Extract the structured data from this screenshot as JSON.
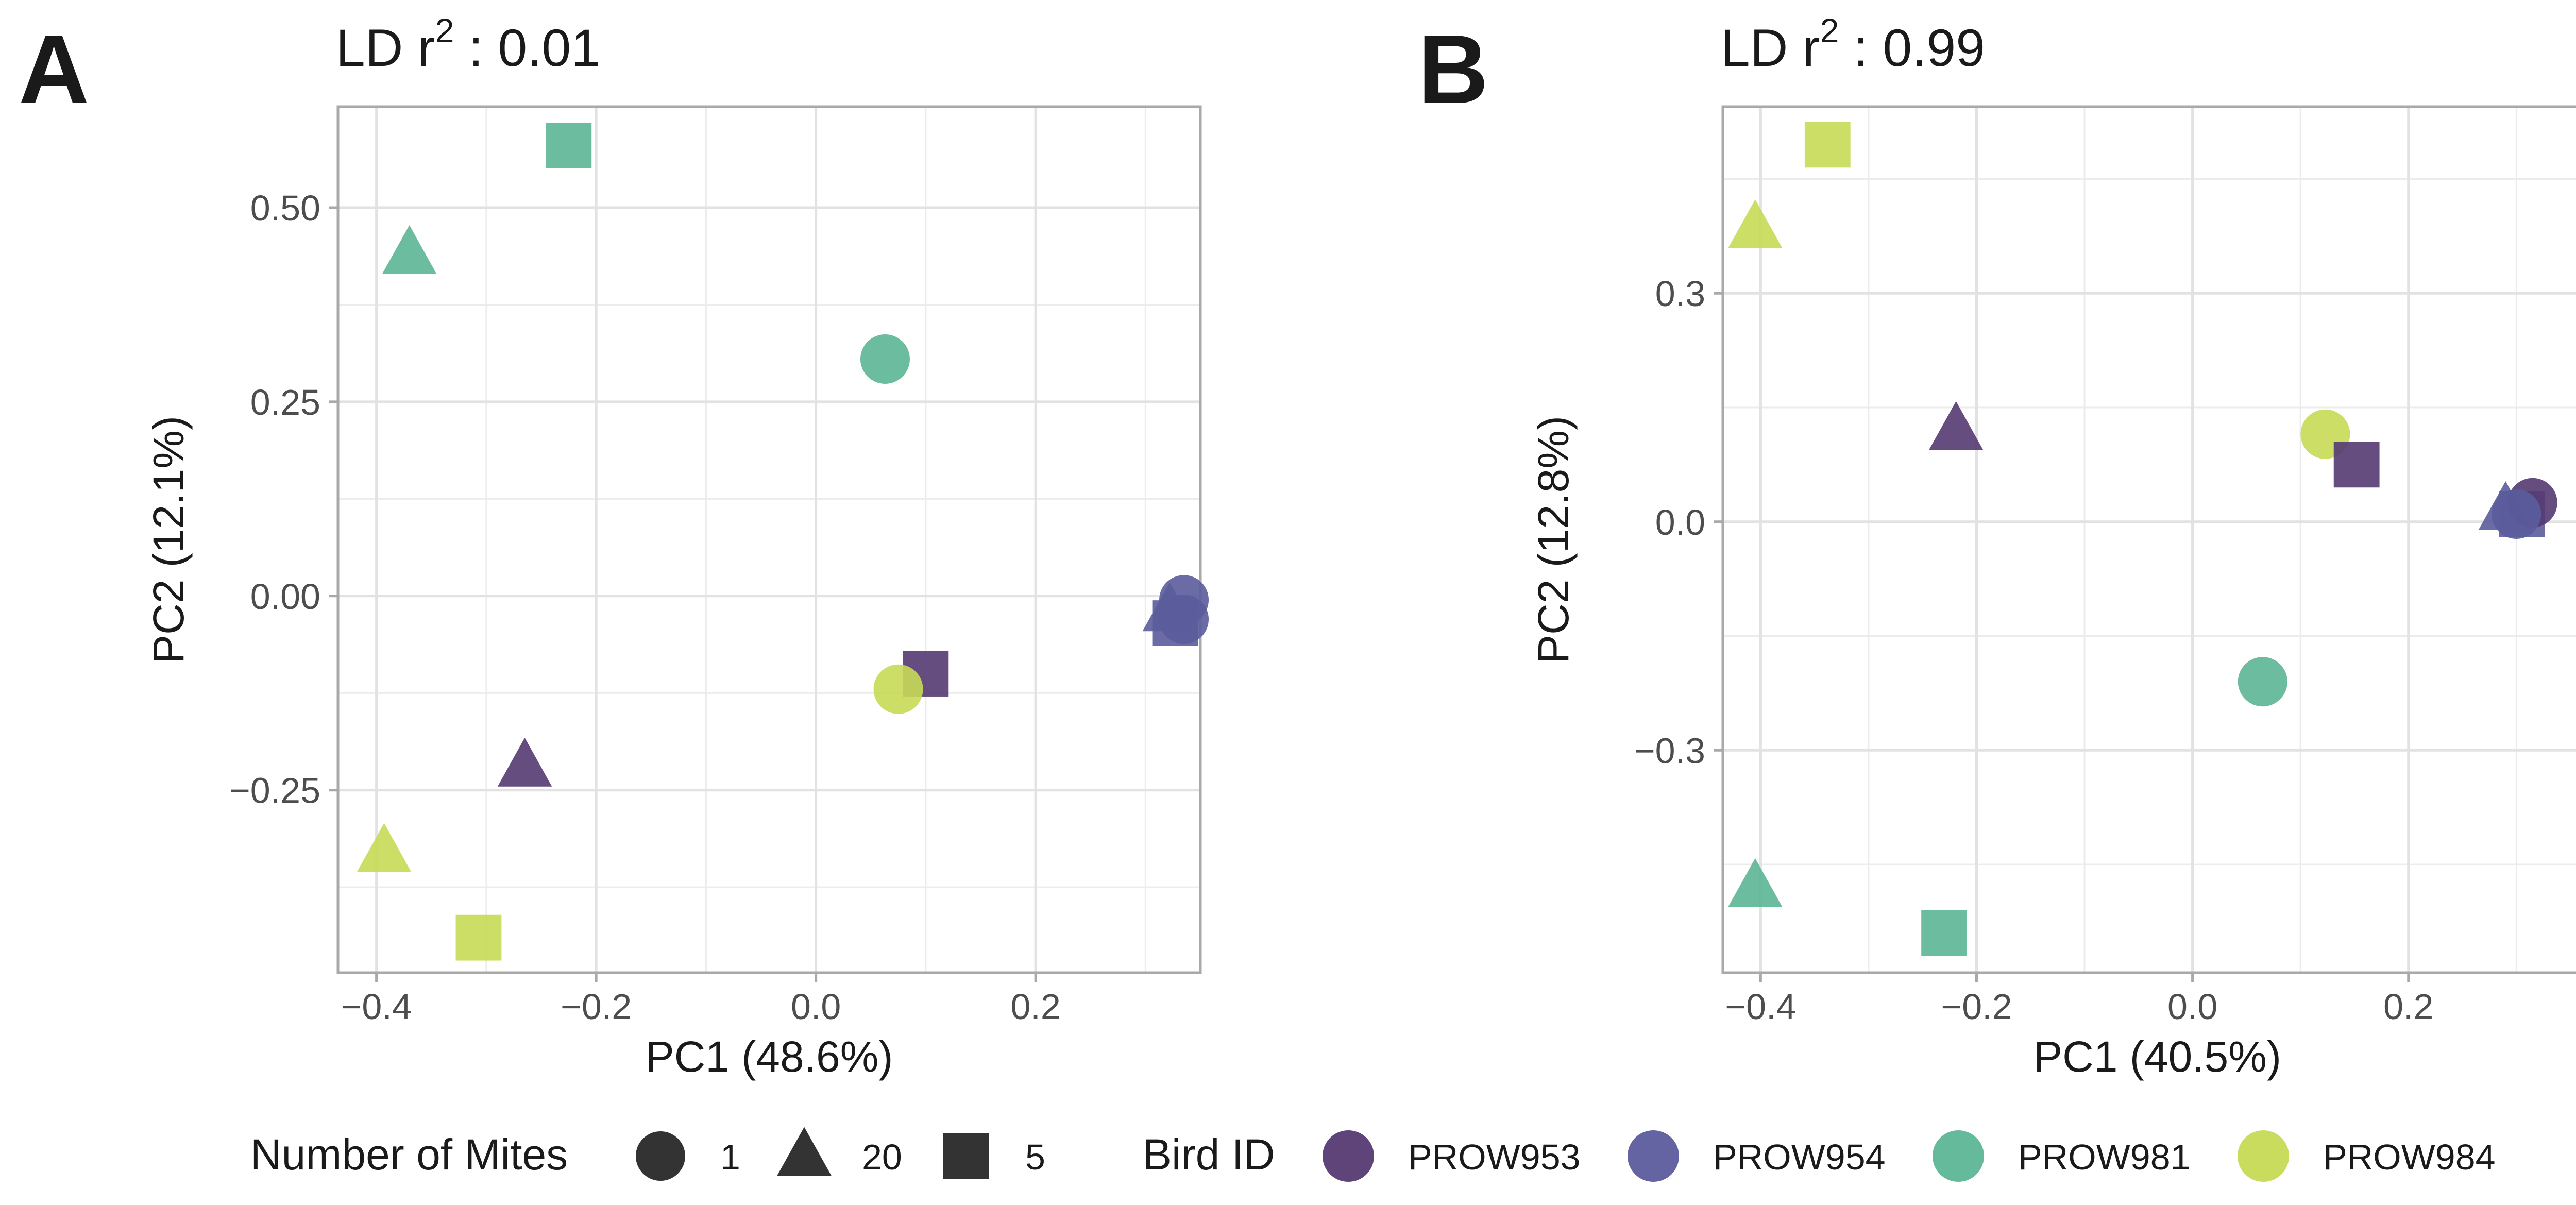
{
  "colors": {
    "PROW953": "#553a72",
    "PROW954": "#5b5c9c",
    "PROW981": "#5cb695",
    "PROW984": "#c6da55",
    "grid": "#e2e2e2",
    "panel_border": "#a9a9a9",
    "text": "#333333",
    "tick_text": "#4d4d4d"
  },
  "chart_data": [
    {
      "panel_label": "A",
      "type": "scatter",
      "title_prefix": "LD r",
      "title_superscript": "2",
      "title_suffix": " : 0.01",
      "xlabel": "PC1 (48.6%)",
      "ylabel": "PC2 (12.1%)",
      "xlim": [
        -0.435,
        0.35
      ],
      "ylim": [
        -0.485,
        0.63
      ],
      "x_ticks": [
        -0.4,
        -0.2,
        0.0,
        0.2
      ],
      "x_tick_labels": [
        "−0.4",
        "−0.2",
        "0.0",
        "0.2"
      ],
      "y_ticks": [
        -0.25,
        0.0,
        0.25,
        0.5
      ],
      "y_tick_labels": [
        "−0.25",
        "0.00",
        "0.25",
        "0.50"
      ],
      "x_minor": [
        -0.3,
        -0.1,
        0.1,
        0.3
      ],
      "y_minor": [
        -0.375,
        -0.125,
        0.125,
        0.375
      ],
      "points": [
        {
          "bird": "PROW981",
          "mites": "5",
          "x": -0.225,
          "y": 0.58
        },
        {
          "bird": "PROW981",
          "mites": "20",
          "x": -0.37,
          "y": 0.44
        },
        {
          "bird": "PROW981",
          "mites": "1",
          "x": 0.063,
          "y": 0.305
        },
        {
          "bird": "PROW954",
          "mites": "20",
          "x": 0.322,
          "y": -0.02
        },
        {
          "bird": "PROW954",
          "mites": "5",
          "x": 0.327,
          "y": -0.035
        },
        {
          "bird": "PROW954",
          "mites": "1",
          "x": 0.335,
          "y": -0.005
        },
        {
          "bird": "PROW954",
          "mites": "1",
          "x": 0.335,
          "y": -0.03
        },
        {
          "bird": "PROW953",
          "mites": "5",
          "x": 0.1,
          "y": -0.1
        },
        {
          "bird": "PROW984",
          "mites": "1",
          "x": 0.075,
          "y": -0.12
        },
        {
          "bird": "PROW953",
          "mites": "20",
          "x": -0.265,
          "y": -0.22
        },
        {
          "bird": "PROW984",
          "mites": "20",
          "x": -0.393,
          "y": -0.33
        },
        {
          "bird": "PROW984",
          "mites": "5",
          "x": -0.307,
          "y": -0.44
        }
      ]
    },
    {
      "panel_label": "B",
      "type": "scatter",
      "title_prefix": "LD r",
      "title_superscript": "2",
      "title_suffix": " : 0.99",
      "xlabel": "PC1 (40.5%)",
      "ylabel": "PC2 (12.8%)",
      "xlim": [
        -0.435,
        0.37
      ],
      "ylim": [
        -0.592,
        0.545
      ],
      "x_ticks": [
        -0.4,
        -0.2,
        0.0,
        0.2
      ],
      "x_tick_labels": [
        "−0.4",
        "−0.2",
        "0.0",
        "0.2"
      ],
      "y_ticks": [
        -0.3,
        0.0,
        0.3
      ],
      "y_tick_labels": [
        "−0.3",
        "0.0",
        "0.3"
      ],
      "x_minor": [
        -0.3,
        -0.1,
        0.1,
        0.3
      ],
      "y_minor": [
        -0.45,
        -0.15,
        0.15,
        0.45
      ],
      "points": [
        {
          "bird": "PROW984",
          "mites": "5",
          "x": -0.338,
          "y": 0.495
        },
        {
          "bird": "PROW984",
          "mites": "20",
          "x": -0.405,
          "y": 0.385
        },
        {
          "bird": "PROW953",
          "mites": "20",
          "x": -0.219,
          "y": 0.12
        },
        {
          "bird": "PROW984",
          "mites": "1",
          "x": 0.123,
          "y": 0.115
        },
        {
          "bird": "PROW953",
          "mites": "5",
          "x": 0.152,
          "y": 0.075
        },
        {
          "bird": "PROW954",
          "mites": "20",
          "x": 0.29,
          "y": 0.015
        },
        {
          "bird": "PROW954",
          "mites": "5",
          "x": 0.305,
          "y": 0.01
        },
        {
          "bird": "PROW953",
          "mites": "1",
          "x": 0.315,
          "y": 0.025
        },
        {
          "bird": "PROW954",
          "mites": "1",
          "x": 0.3,
          "y": 0.01
        },
        {
          "bird": "PROW981",
          "mites": "1",
          "x": 0.065,
          "y": -0.21
        },
        {
          "bird": "PROW981",
          "mites": "20",
          "x": -0.405,
          "y": -0.48
        },
        {
          "bird": "PROW981",
          "mites": "5",
          "x": -0.23,
          "y": -0.54
        }
      ]
    }
  ],
  "legend": {
    "mites_title": "Number of Mites",
    "mites_items": [
      {
        "shape": "1",
        "label": "1"
      },
      {
        "shape": "20",
        "label": "20"
      },
      {
        "shape": "5",
        "label": "5"
      }
    ],
    "bird_title": "Bird ID",
    "bird_items": [
      {
        "bird": "PROW953",
        "label": "PROW953"
      },
      {
        "bird": "PROW954",
        "label": "PROW954"
      },
      {
        "bird": "PROW981",
        "label": "PROW981"
      },
      {
        "bird": "PROW984",
        "label": "PROW984"
      }
    ]
  }
}
